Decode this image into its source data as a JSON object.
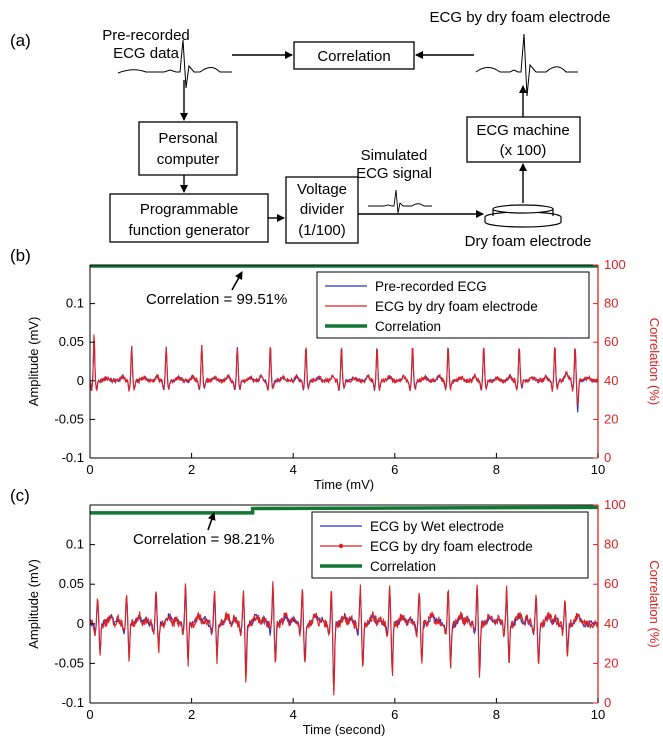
{
  "diagram": {
    "panel_label": "(a)",
    "boxes": {
      "correlation": "Correlation",
      "personal_computer": [
        "Personal",
        "computer"
      ],
      "function_generator": [
        "Programmable",
        "function generator"
      ],
      "voltage_divider": [
        "Voltage",
        "divider",
        "(1/100)"
      ],
      "ecg_machine": [
        "ECG machine",
        "(x 100)"
      ]
    },
    "labels": {
      "prerecorded": [
        "Pre-recorded",
        "ECG data"
      ],
      "dry_foam_ecg": "ECG by dry foam electrode",
      "simulated": [
        "Simulated",
        "ECG signal"
      ],
      "dry_foam_electrode": "Dry foam electrode"
    }
  },
  "chart_data": [
    {
      "type": "line",
      "panel_label": "(b)",
      "xlabel": "Time (mV)",
      "ylabel": "Amplitude (mV)",
      "ylabel_right": "Correlation (%)",
      "xlim": [
        0,
        10
      ],
      "ylim": [
        -0.1,
        0.15
      ],
      "ylim_right": [
        0,
        100
      ],
      "xticks": [
        "0",
        "2",
        "4",
        "6",
        "8",
        "10"
      ],
      "yticks": [
        "-0.1",
        "-0.05",
        "0",
        "0.05",
        "0.1"
      ],
      "yticks_right": [
        "0",
        "20",
        "40",
        "60",
        "80",
        "100"
      ],
      "annotation": "Correlation = 99.51%",
      "legend_position": "top-right",
      "series": [
        {
          "name": "Pre-recorded ECG",
          "color": "#2233cc",
          "axis": "left",
          "beat_times": [
            0.08,
            0.82,
            1.5,
            2.2,
            2.9,
            3.55,
            4.25,
            4.95,
            5.65,
            6.35,
            7.05,
            7.75,
            8.45,
            9.15,
            9.55
          ],
          "r_peak_values": [
            0.055,
            0.045,
            0.045,
            0.045,
            0.045,
            0.045,
            0.045,
            0.045,
            0.045,
            0.045,
            0.045,
            0.045,
            0.045,
            0.045,
            0.045
          ],
          "s_trough_values": [
            -0.01,
            -0.01,
            -0.01,
            -0.01,
            -0.01,
            -0.01,
            -0.01,
            -0.01,
            -0.01,
            -0.01,
            -0.01,
            -0.01,
            -0.01,
            -0.01,
            -0.04
          ]
        },
        {
          "name": "ECG by dry foam electrode",
          "color": "#dd2222",
          "axis": "left",
          "beat_times": [
            0.08,
            0.82,
            1.5,
            2.2,
            2.9,
            3.55,
            4.25,
            4.95,
            5.65,
            6.35,
            7.05,
            7.75,
            8.45,
            9.15,
            9.55
          ],
          "r_peak_values": [
            0.06,
            0.045,
            0.045,
            0.045,
            0.045,
            0.045,
            0.045,
            0.045,
            0.045,
            0.045,
            0.045,
            0.045,
            0.045,
            0.045,
            0.045
          ],
          "s_trough_values": [
            -0.01,
            -0.01,
            -0.01,
            -0.01,
            -0.01,
            -0.01,
            -0.01,
            -0.01,
            -0.01,
            -0.01,
            -0.01,
            -0.01,
            -0.01,
            -0.01,
            -0.03
          ]
        },
        {
          "name": "Correlation",
          "color": "#117733",
          "axis": "right",
          "x": [
            0,
            10
          ],
          "values": [
            99.51,
            99.51
          ]
        }
      ]
    },
    {
      "type": "line",
      "panel_label": "(c)",
      "xlabel": "Time (second)",
      "ylabel": "Amplitude (mV)",
      "ylabel_right": "Correlation (%)",
      "xlim": [
        0,
        10
      ],
      "ylim": [
        -0.1,
        0.15
      ],
      "ylim_right": [
        0,
        100
      ],
      "xticks": [
        "0",
        "2",
        "4",
        "6",
        "8",
        "10"
      ],
      "yticks": [
        "-0.1",
        "-0.05",
        "0",
        "0.05",
        "0.1"
      ],
      "yticks_right": [
        "0",
        "20",
        "40",
        "60",
        "80",
        "100"
      ],
      "annotation": "Correlation = 98.21%",
      "legend_position": "top-right",
      "series": [
        {
          "name": "ECG by Wet electrode",
          "color": "#2233cc",
          "axis": "left",
          "beat_times": [
            0.15,
            0.72,
            1.3,
            1.88,
            2.45,
            3.02,
            3.6,
            4.18,
            4.75,
            5.32,
            5.9,
            6.48,
            7.05,
            7.62,
            8.2,
            8.78,
            9.35
          ],
          "r_peak_values": [
            0.03,
            0.035,
            0.04,
            0.045,
            0.04,
            0.035,
            0.045,
            0.04,
            0.035,
            0.04,
            0.045,
            0.04,
            0.04,
            0.045,
            0.04,
            0.035,
            0.03
          ],
          "s_trough_values": [
            -0.035,
            -0.04,
            -0.03,
            -0.045,
            -0.04,
            -0.065,
            -0.045,
            -0.05,
            -0.085,
            -0.05,
            -0.06,
            -0.045,
            -0.05,
            -0.06,
            -0.045,
            -0.05,
            -0.04
          ]
        },
        {
          "name": "ECG by dry foam electrode",
          "color": "#dd2222",
          "axis": "left",
          "beat_times": [
            0.15,
            0.72,
            1.3,
            1.88,
            2.45,
            3.02,
            3.6,
            4.18,
            4.75,
            5.32,
            5.9,
            6.48,
            7.05,
            7.62,
            8.2,
            8.78,
            9.35
          ],
          "r_peak_values": [
            0.035,
            0.04,
            0.045,
            0.05,
            0.045,
            0.04,
            0.05,
            0.045,
            0.04,
            0.045,
            0.05,
            0.045,
            0.045,
            0.05,
            0.045,
            0.04,
            0.035
          ],
          "s_trough_values": [
            -0.04,
            -0.045,
            -0.035,
            -0.05,
            -0.045,
            -0.075,
            -0.05,
            -0.055,
            -0.09,
            -0.055,
            -0.065,
            -0.05,
            -0.055,
            -0.065,
            -0.05,
            -0.055,
            -0.045
          ]
        },
        {
          "name": "Correlation",
          "color": "#117733",
          "axis": "right",
          "x": [
            0,
            3.2,
            3.2,
            10
          ],
          "values": [
            96,
            96,
            98.2,
            98.8
          ]
        }
      ]
    }
  ]
}
